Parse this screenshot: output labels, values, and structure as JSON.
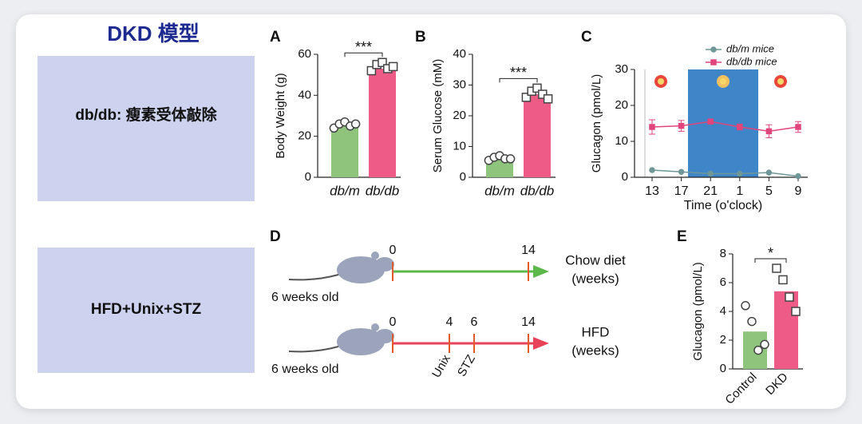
{
  "title": "DKD 模型",
  "models": [
    "db/db: 瘦素受体敲除",
    "HFD+Unix+STZ"
  ],
  "chart_data": [
    {
      "type": "bar",
      "panel": "A",
      "y_label": "Body Weight (g)",
      "categories": [
        "db/m",
        "db/db"
      ],
      "values": [
        25,
        53
      ],
      "colors": [
        "#8fc47c",
        "#ee5b86"
      ],
      "markers": [
        "circle",
        "square"
      ],
      "points": [
        [
          24,
          26,
          27,
          25,
          26
        ],
        [
          52,
          55,
          56,
          53,
          54
        ]
      ],
      "annotation": "***",
      "ylim": [
        0,
        60
      ],
      "yticks": [
        0,
        20,
        40,
        60
      ]
    },
    {
      "type": "bar",
      "panel": "B",
      "y_label": "Serum Glucose (mM)",
      "categories": [
        "db/m",
        "db/db"
      ],
      "values": [
        6.5,
        27
      ],
      "colors": [
        "#8fc47c",
        "#ee5b86"
      ],
      "markers": [
        "circle",
        "square"
      ],
      "points": [
        [
          5.5,
          6.5,
          7,
          6,
          6
        ],
        [
          26,
          28,
          29,
          27,
          25.5
        ]
      ],
      "annotation": "***",
      "ylim": [
        0,
        40
      ],
      "yticks": [
        0,
        10,
        20,
        30,
        40
      ]
    },
    {
      "type": "line",
      "panel": "C",
      "x_label": "Time (o'clock)",
      "y_label": "Glucagon (pmol/L)",
      "categories": [
        "13",
        "17",
        "21",
        "1",
        "5",
        "9"
      ],
      "series": [
        {
          "name": "db/m mice",
          "color": "#6f9797",
          "marker": "circle",
          "values": [
            2,
            1.5,
            1,
            1,
            1.3,
            0.3
          ]
        },
        {
          "name": "db/db mice",
          "color": "#e0457b",
          "marker": "square",
          "values": [
            14,
            14.3,
            15.5,
            14,
            12.8,
            14
          ],
          "errors": [
            2,
            1.5,
            0.5,
            0.8,
            1.8,
            1.5
          ]
        }
      ],
      "ylim": [
        0,
        30
      ],
      "yticks": [
        0,
        10,
        20,
        30
      ],
      "legend": "top-right"
    },
    {
      "type": "bar",
      "panel": "E",
      "y_label": "Glucagon (pmol/L)",
      "categories": [
        "Control",
        "DKD"
      ],
      "values": [
        2.6,
        5.4
      ],
      "colors": [
        "#8fc47c",
        "#ee5b86"
      ],
      "markers": [
        "circle",
        "square"
      ],
      "points": [
        [
          4.4,
          3.3,
          1.3,
          1.7
        ],
        [
          7.0,
          6.2,
          5.0,
          4.0
        ]
      ],
      "annotation": "*",
      "ylim": [
        0,
        8
      ],
      "yticks": [
        0,
        2,
        4,
        6,
        8
      ]
    }
  ],
  "timeline": {
    "panel": "D",
    "rows": [
      {
        "start_label": "6 weeks old",
        "ticks": [
          "0",
          "14"
        ],
        "end_label": [
          "Chow diet",
          "(weeks)"
        ],
        "color": "#5cb84a"
      },
      {
        "start_label": "6 weeks old",
        "ticks": [
          "0",
          "4",
          "6",
          "14"
        ],
        "events": [
          "Unix",
          "STZ"
        ],
        "end_label": [
          "HFD",
          "(weeks)"
        ],
        "color": "#e8425a"
      }
    ]
  }
}
